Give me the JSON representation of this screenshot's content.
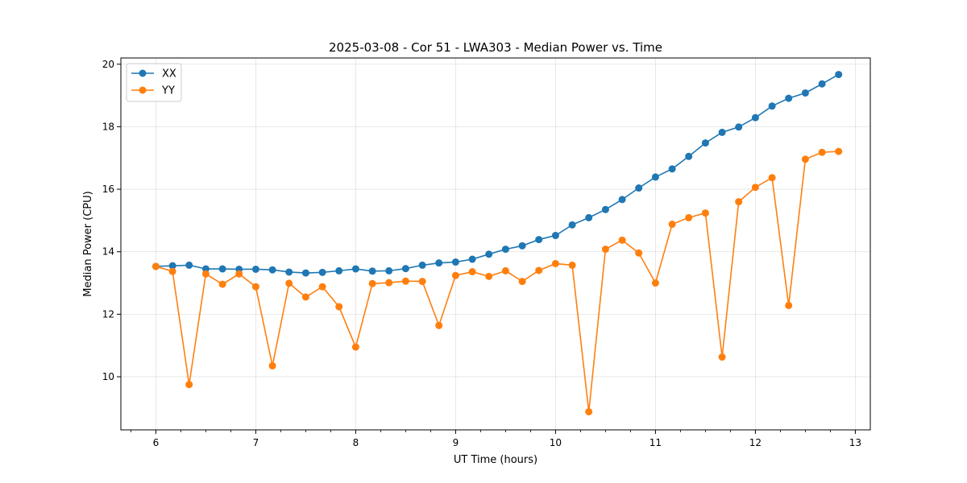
{
  "chart_data": {
    "type": "line",
    "title": "2025-03-08 - Cor 51 - LWA303 - Median Power vs. Time",
    "xlabel": "UT Time (hours)",
    "ylabel": "Median Power (CPU)",
    "xlim": [
      5.65,
      13.15
    ],
    "ylim": [
      8.3,
      20.2
    ],
    "xticks": [
      6,
      7,
      8,
      9,
      10,
      11,
      12,
      13
    ],
    "yticks": [
      10,
      12,
      14,
      16,
      18,
      20
    ],
    "grid": true,
    "legend_position": "top-left",
    "x": [
      6.0,
      6.167,
      6.333,
      6.5,
      6.667,
      6.833,
      7.0,
      7.167,
      7.333,
      7.5,
      7.667,
      7.833,
      8.0,
      8.167,
      8.333,
      8.5,
      8.667,
      8.833,
      9.0,
      9.167,
      9.333,
      9.5,
      9.667,
      9.833,
      10.0,
      10.167,
      10.333,
      10.5,
      10.667,
      10.833,
      11.0,
      11.167,
      11.333,
      11.5,
      11.667,
      11.833,
      12.0,
      12.167,
      12.333,
      12.5,
      12.667,
      12.833
    ],
    "series": [
      {
        "name": "XX",
        "color": "#1f77b4",
        "values": [
          13.53,
          13.55,
          13.57,
          13.45,
          13.45,
          13.44,
          13.44,
          13.42,
          13.35,
          13.32,
          13.34,
          13.39,
          13.45,
          13.38,
          13.39,
          13.46,
          13.57,
          13.64,
          13.67,
          13.76,
          13.92,
          14.08,
          14.19,
          14.39,
          14.52,
          14.86,
          15.09,
          15.35,
          15.67,
          16.04,
          16.39,
          16.65,
          17.05,
          17.48,
          17.82,
          17.99,
          18.29,
          18.66,
          18.91,
          19.08,
          19.37,
          19.67
        ]
      },
      {
        "name": "YY",
        "color": "#ff7f0e",
        "values": [
          13.53,
          13.37,
          9.75,
          13.29,
          12.96,
          13.29,
          12.88,
          10.35,
          12.99,
          12.55,
          12.88,
          12.24,
          10.95,
          12.98,
          13.01,
          13.06,
          13.05,
          11.64,
          13.24,
          13.36,
          13.21,
          13.39,
          13.05,
          13.4,
          13.62,
          13.57,
          8.88,
          14.08,
          14.37,
          13.96,
          13.0,
          14.88,
          15.09,
          15.24,
          10.63,
          15.6,
          16.06,
          16.37,
          12.28,
          16.96,
          17.18,
          17.21
        ]
      }
    ]
  }
}
